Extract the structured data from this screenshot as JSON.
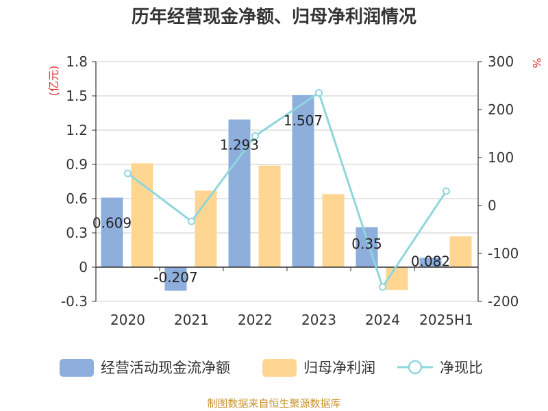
{
  "title": "历年经营现金净额、归母净利润情况",
  "source_note": "制图数据来自恒生聚源数据库",
  "colors": {
    "cashflow": "#8eaedc",
    "profit": "#fed691",
    "ratio": "#8ed6dd",
    "unit": "#e03030",
    "axis": "#333333",
    "grid": "#cccccc",
    "text": "#333333"
  },
  "chart_data": {
    "type": "bar",
    "title": "历年经营现金净额、归母净利润情况",
    "categories": [
      "2020",
      "2021",
      "2022",
      "2023",
      "2024",
      "2025H1"
    ],
    "y_left": {
      "label": "(亿元)",
      "range": [
        -0.3,
        1.8
      ],
      "ticks": [
        "1.8",
        "1.5",
        "1.2",
        "0.9",
        "0.6",
        "0.3",
        "0",
        "-0.3"
      ]
    },
    "y_right": {
      "label": "%",
      "range": [
        -200,
        300
      ],
      "ticks": [
        "300",
        "200",
        "100",
        "0",
        "-100",
        "-200"
      ]
    },
    "series": [
      {
        "name": "经营活动现金流净额",
        "kind": "bar",
        "axis": "left",
        "values": [
          0.609,
          -0.207,
          1.293,
          1.507,
          0.35,
          0.082
        ],
        "data_labels": [
          "0.609",
          "-0.207",
          "1.293",
          "1.507",
          "0.35",
          "0.082"
        ]
      },
      {
        "name": "归母净利润",
        "kind": "bar",
        "axis": "left",
        "values": [
          0.91,
          0.67,
          0.89,
          0.64,
          -0.2,
          0.27
        ]
      },
      {
        "name": "净现比",
        "kind": "line",
        "axis": "right",
        "values": [
          67,
          -33,
          145,
          235,
          -170,
          30
        ]
      }
    ],
    "legend": [
      "经营活动现金流净额",
      "归母净利润",
      "净现比"
    ],
    "legend_position": "bottom",
    "grid": true
  }
}
